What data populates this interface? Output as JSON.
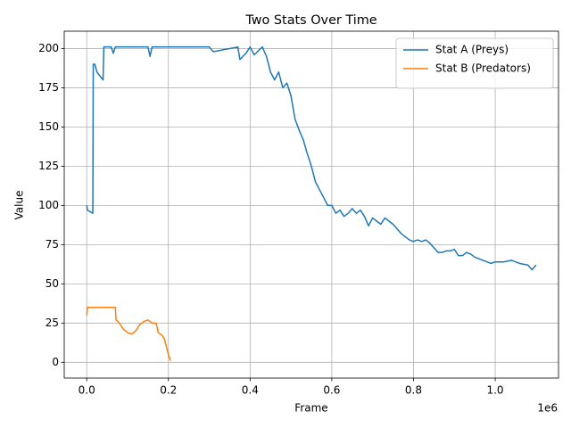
{
  "chart_data": {
    "type": "line",
    "title": "Two Stats Over Time",
    "x_label": "Frame",
    "y_label": "Value",
    "x_offset_label": "1e6",
    "xlim": [
      -55000,
      1155000
    ],
    "ylim": [
      -10.05,
      211.05
    ],
    "xticks": [
      {
        "value": 0,
        "label": "0.0"
      },
      {
        "value": 200000,
        "label": "0.2"
      },
      {
        "value": 400000,
        "label": "0.4"
      },
      {
        "value": 600000,
        "label": "0.6"
      },
      {
        "value": 800000,
        "label": "0.8"
      },
      {
        "value": 1000000,
        "label": "1.0"
      }
    ],
    "yticks": [
      0,
      25,
      50,
      75,
      100,
      125,
      150,
      175,
      200
    ],
    "grid": true,
    "legend": "upper right",
    "series": [
      {
        "name": "Stat A (Preys)",
        "color": "#1f77b4",
        "x": [
          0,
          2000,
          15000,
          16000,
          20000,
          25000,
          40000,
          42000,
          60000,
          65000,
          70000,
          150000,
          155000,
          160000,
          300000,
          310000,
          370000,
          375000,
          390000,
          400000,
          410000,
          430000,
          440000,
          450000,
          460000,
          470000,
          480000,
          490000,
          500000,
          510000,
          520000,
          530000,
          540000,
          550000,
          560000,
          570000,
          580000,
          590000,
          600000,
          610000,
          620000,
          630000,
          640000,
          650000,
          660000,
          670000,
          680000,
          690000,
          700000,
          710000,
          720000,
          730000,
          740000,
          750000,
          760000,
          770000,
          780000,
          790000,
          800000,
          810000,
          820000,
          830000,
          840000,
          850000,
          860000,
          870000,
          880000,
          890000,
          900000,
          910000,
          920000,
          930000,
          940000,
          950000,
          960000,
          970000,
          980000,
          990000,
          1000000,
          1020000,
          1040000,
          1060000,
          1080000,
          1090000,
          1100000
        ],
        "values": [
          100,
          97,
          95,
          190,
          190,
          185,
          180,
          201,
          201,
          197,
          201,
          201,
          195,
          201,
          201,
          198,
          201,
          193,
          197,
          201,
          196,
          201,
          195,
          185,
          180,
          185,
          175,
          178,
          170,
          155,
          148,
          142,
          133,
          125,
          115,
          110,
          105,
          100,
          100,
          95,
          97,
          93,
          95,
          98,
          95,
          97,
          93,
          87,
          92,
          90,
          88,
          92,
          90,
          88,
          85,
          82,
          80,
          78,
          77,
          78,
          77,
          78,
          76,
          73,
          70,
          70,
          71,
          71,
          72,
          68,
          68,
          70,
          69,
          67,
          66,
          65,
          64,
          63,
          64,
          64,
          65,
          63,
          62,
          59,
          62
        ]
      },
      {
        "name": "Stat B (Predators)",
        "color": "#ff7f0e",
        "x": [
          0,
          2000,
          70000,
          72000,
          80000,
          90000,
          100000,
          110000,
          120000,
          130000,
          140000,
          150000,
          160000,
          170000,
          175000,
          185000,
          190000,
          195000,
          200000,
          205000
        ],
        "values": [
          30,
          35,
          35,
          27,
          25,
          21,
          19,
          18,
          20,
          24,
          26,
          27,
          25,
          25,
          19,
          17,
          15,
          10,
          5,
          1
        ]
      }
    ]
  }
}
